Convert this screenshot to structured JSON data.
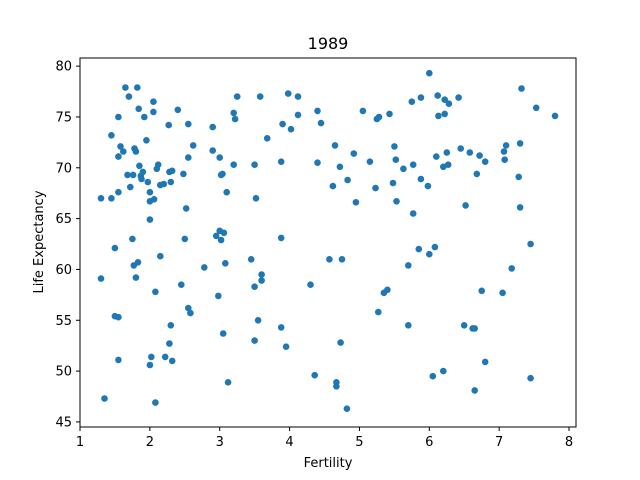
{
  "chart_data": {
    "type": "scatter",
    "title": "1989",
    "xlabel": "Fertility",
    "ylabel": "Life Expectancy",
    "xlim": [
      1,
      8.1
    ],
    "ylim": [
      44.5,
      80.8
    ],
    "xticks": [
      1,
      2,
      3,
      4,
      5,
      6,
      7,
      8
    ],
    "yticks": [
      45,
      50,
      55,
      60,
      65,
      70,
      75,
      80
    ],
    "grid": false,
    "legend": "none",
    "marker_color": "#1f77b4",
    "points": [
      [
        1.3,
        67.0
      ],
      [
        1.3,
        59.1
      ],
      [
        1.35,
        47.3
      ],
      [
        1.45,
        67.0
      ],
      [
        1.45,
        73.2
      ],
      [
        1.5,
        62.1
      ],
      [
        1.5,
        55.4
      ],
      [
        1.55,
        55.3
      ],
      [
        1.55,
        51.1
      ],
      [
        1.55,
        71.1
      ],
      [
        1.55,
        67.6
      ],
      [
        1.55,
        75.0
      ],
      [
        1.58,
        72.1
      ],
      [
        1.62,
        71.6
      ],
      [
        1.65,
        77.9
      ],
      [
        1.68,
        69.3
      ],
      [
        1.7,
        77.0
      ],
      [
        1.72,
        68.1
      ],
      [
        1.75,
        63.0
      ],
      [
        1.76,
        69.3
      ],
      [
        1.77,
        60.4
      ],
      [
        1.78,
        71.9
      ],
      [
        1.8,
        71.6
      ],
      [
        1.8,
        59.2
      ],
      [
        1.82,
        77.9
      ],
      [
        1.83,
        60.7
      ],
      [
        1.84,
        75.8
      ],
      [
        1.85,
        70.2
      ],
      [
        1.87,
        69.2
      ],
      [
        1.88,
        68.9
      ],
      [
        1.9,
        69.6
      ],
      [
        1.92,
        75.0
      ],
      [
        1.95,
        72.7
      ],
      [
        1.97,
        68.6
      ],
      [
        2.0,
        67.6
      ],
      [
        2.0,
        66.7
      ],
      [
        2.0,
        64.9
      ],
      [
        2.0,
        50.6
      ],
      [
        2.02,
        51.4
      ],
      [
        2.05,
        75.5
      ],
      [
        2.05,
        76.5
      ],
      [
        2.06,
        66.9
      ],
      [
        2.08,
        57.8
      ],
      [
        2.08,
        46.9
      ],
      [
        2.1,
        69.9
      ],
      [
        2.12,
        70.3
      ],
      [
        2.15,
        68.3
      ],
      [
        2.15,
        61.3
      ],
      [
        2.2,
        68.4
      ],
      [
        2.22,
        51.4
      ],
      [
        2.27,
        74.2
      ],
      [
        2.28,
        69.6
      ],
      [
        2.28,
        52.7
      ],
      [
        2.3,
        68.6
      ],
      [
        2.3,
        54.5
      ],
      [
        2.32,
        51.0
      ],
      [
        2.32,
        69.7
      ],
      [
        2.4,
        75.7
      ],
      [
        2.45,
        58.5
      ],
      [
        2.48,
        69.4
      ],
      [
        2.5,
        63.0
      ],
      [
        2.52,
        66.0
      ],
      [
        2.55,
        56.2
      ],
      [
        2.55,
        74.3
      ],
      [
        2.55,
        71.0
      ],
      [
        2.58,
        55.7
      ],
      [
        2.62,
        72.2
      ],
      [
        2.78,
        60.2
      ],
      [
        2.9,
        71.7
      ],
      [
        2.9,
        74.0
      ],
      [
        2.95,
        63.3
      ],
      [
        2.98,
        57.4
      ],
      [
        3.0,
        63.8
      ],
      [
        3.0,
        71.0
      ],
      [
        3.02,
        62.9
      ],
      [
        3.02,
        69.3
      ],
      [
        3.04,
        69.4
      ],
      [
        3.05,
        53.7
      ],
      [
        3.06,
        63.6
      ],
      [
        3.08,
        60.6
      ],
      [
        3.1,
        67.6
      ],
      [
        3.12,
        48.9
      ],
      [
        3.2,
        70.3
      ],
      [
        3.2,
        75.4
      ],
      [
        3.22,
        74.8
      ],
      [
        3.25,
        77.0
      ],
      [
        3.45,
        61.0
      ],
      [
        3.5,
        58.3
      ],
      [
        3.5,
        53.0
      ],
      [
        3.5,
        70.3
      ],
      [
        3.52,
        67.0
      ],
      [
        3.55,
        55.0
      ],
      [
        3.58,
        77.0
      ],
      [
        3.6,
        58.9
      ],
      [
        3.6,
        59.5
      ],
      [
        3.68,
        72.9
      ],
      [
        3.88,
        63.1
      ],
      [
        3.88,
        54.3
      ],
      [
        3.88,
        70.6
      ],
      [
        3.9,
        74.3
      ],
      [
        3.95,
        52.4
      ],
      [
        3.98,
        77.3
      ],
      [
        4.02,
        73.8
      ],
      [
        4.12,
        75.2
      ],
      [
        4.12,
        77.0
      ],
      [
        4.3,
        58.5
      ],
      [
        4.36,
        49.6
      ],
      [
        4.4,
        70.5
      ],
      [
        4.4,
        75.6
      ],
      [
        4.45,
        74.4
      ],
      [
        4.57,
        61.0
      ],
      [
        4.62,
        68.2
      ],
      [
        4.65,
        72.2
      ],
      [
        4.67,
        48.9
      ],
      [
        4.67,
        48.5
      ],
      [
        4.72,
        70.1
      ],
      [
        4.73,
        52.8
      ],
      [
        4.75,
        61.0
      ],
      [
        4.82,
        46.3
      ],
      [
        4.83,
        68.8
      ],
      [
        4.92,
        71.4
      ],
      [
        4.95,
        66.6
      ],
      [
        5.05,
        75.6
      ],
      [
        5.15,
        70.6
      ],
      [
        5.23,
        68.0
      ],
      [
        5.25,
        74.8
      ],
      [
        5.27,
        55.8
      ],
      [
        5.28,
        75.0
      ],
      [
        5.35,
        57.7
      ],
      [
        5.4,
        58.0
      ],
      [
        5.43,
        75.3
      ],
      [
        5.48,
        68.5
      ],
      [
        5.5,
        72.1
      ],
      [
        5.52,
        70.8
      ],
      [
        5.53,
        66.7
      ],
      [
        5.63,
        69.9
      ],
      [
        5.7,
        60.4
      ],
      [
        5.7,
        54.5
      ],
      [
        5.75,
        76.5
      ],
      [
        5.77,
        65.5
      ],
      [
        5.77,
        70.3
      ],
      [
        5.85,
        62.0
      ],
      [
        5.88,
        76.9
      ],
      [
        5.88,
        68.9
      ],
      [
        5.98,
        68.2
      ],
      [
        6.0,
        79.3
      ],
      [
        6.0,
        61.5
      ],
      [
        6.05,
        49.5
      ],
      [
        6.08,
        62.2
      ],
      [
        6.1,
        71.1
      ],
      [
        6.12,
        77.1
      ],
      [
        6.13,
        75.1
      ],
      [
        6.2,
        50.0
      ],
      [
        6.2,
        70.1
      ],
      [
        6.22,
        75.3
      ],
      [
        6.22,
        76.7
      ],
      [
        6.25,
        71.5
      ],
      [
        6.27,
        70.3
      ],
      [
        6.28,
        76.3
      ],
      [
        6.42,
        76.9
      ],
      [
        6.45,
        71.9
      ],
      [
        6.5,
        54.5
      ],
      [
        6.52,
        66.3
      ],
      [
        6.58,
        71.5
      ],
      [
        6.62,
        54.2
      ],
      [
        6.65,
        54.2
      ],
      [
        6.65,
        48.1
      ],
      [
        6.68,
        69.4
      ],
      [
        6.72,
        71.2
      ],
      [
        6.75,
        57.9
      ],
      [
        6.8,
        50.9
      ],
      [
        6.8,
        70.6
      ],
      [
        7.05,
        57.7
      ],
      [
        7.07,
        71.6
      ],
      [
        7.08,
        70.8
      ],
      [
        7.1,
        72.2
      ],
      [
        7.18,
        60.1
      ],
      [
        7.28,
        69.1
      ],
      [
        7.3,
        66.1
      ],
      [
        7.3,
        72.4
      ],
      [
        7.32,
        77.8
      ],
      [
        7.45,
        62.5
      ],
      [
        7.45,
        49.3
      ],
      [
        7.53,
        75.9
      ],
      [
        7.8,
        75.1
      ]
    ]
  }
}
